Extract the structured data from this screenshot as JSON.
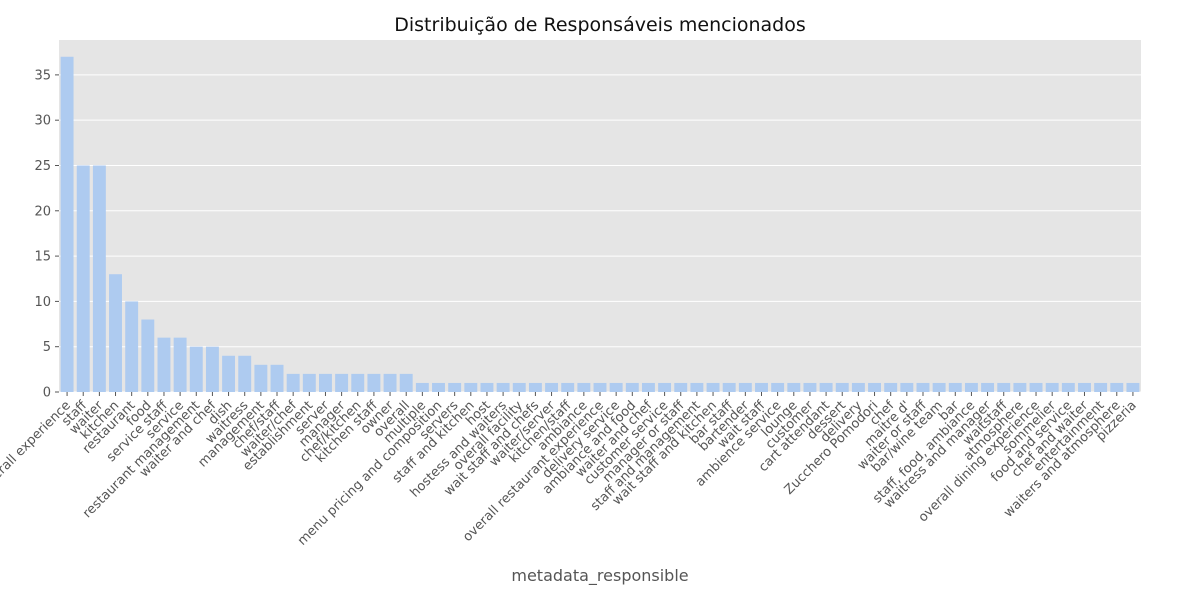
{
  "chart_data": {
    "type": "bar",
    "title": "Distribuição de Responsáveis mencionados",
    "xlabel": "metadata_responsible",
    "ylabel": "",
    "ylim": [
      0,
      38.85
    ],
    "yticks": [
      0,
      5,
      10,
      15,
      20,
      25,
      30,
      35
    ],
    "grid": true,
    "legend": "none",
    "colors": {
      "bar": "#aecbf0",
      "plot_bg": "#e5e5e5",
      "grid": "#ffffff",
      "tick_text": "#555555",
      "title_text": "#111111"
    },
    "categories": [
      "overall experience",
      "staff",
      "waiter",
      "kitchen",
      "restaurant",
      "food",
      "service staff",
      "service",
      "restaurant management",
      "waiter and chef",
      "dish",
      "waitress",
      "management",
      "chef/staff",
      "waiter/chef",
      "establishment",
      "server",
      "manager",
      "chef/kitchen",
      "kitchen staff",
      "owner",
      "overall",
      "multiple",
      "menu pricing and composition",
      "servers",
      "staff and kitchen",
      "host",
      "hostess and waiters",
      "overall facility",
      "wait staff and chefs",
      "waiter/server",
      "kitchen/staff",
      "ambiance",
      "overall restaurant experience",
      "delivery service",
      "ambiance and food",
      "waiter and chef",
      "customer service",
      "manager or staff",
      "staff and management",
      "wait staff and kitchen",
      "bar staff",
      "bartender",
      "wait staff",
      "ambience service",
      "lounge",
      "customer",
      "cart attendant",
      "dessert",
      "delivery",
      "Zucchero Pomodori",
      "chef",
      "maitre d'",
      "waiter or staff",
      "bar/wine team",
      "bar",
      "staff, food, ambiance",
      "waitress and manager",
      "waitstaff",
      "atmosphere",
      "overall dining experience",
      "sommelier",
      "food and service",
      "chef and waiter",
      "entertainment",
      "waiters and atmosphere",
      "pizzeria"
    ],
    "values": [
      37,
      25,
      25,
      13,
      10,
      8,
      6,
      6,
      5,
      5,
      4,
      4,
      3,
      3,
      2,
      2,
      2,
      2,
      2,
      2,
      2,
      2,
      1,
      1,
      1,
      1,
      1,
      1,
      1,
      1,
      1,
      1,
      1,
      1,
      1,
      1,
      1,
      1,
      1,
      1,
      1,
      1,
      1,
      1,
      1,
      1,
      1,
      1,
      1,
      1,
      1,
      1,
      1,
      1,
      1,
      1,
      1,
      1,
      1,
      1,
      1,
      1,
      1,
      1,
      1,
      1,
      1
    ]
  }
}
